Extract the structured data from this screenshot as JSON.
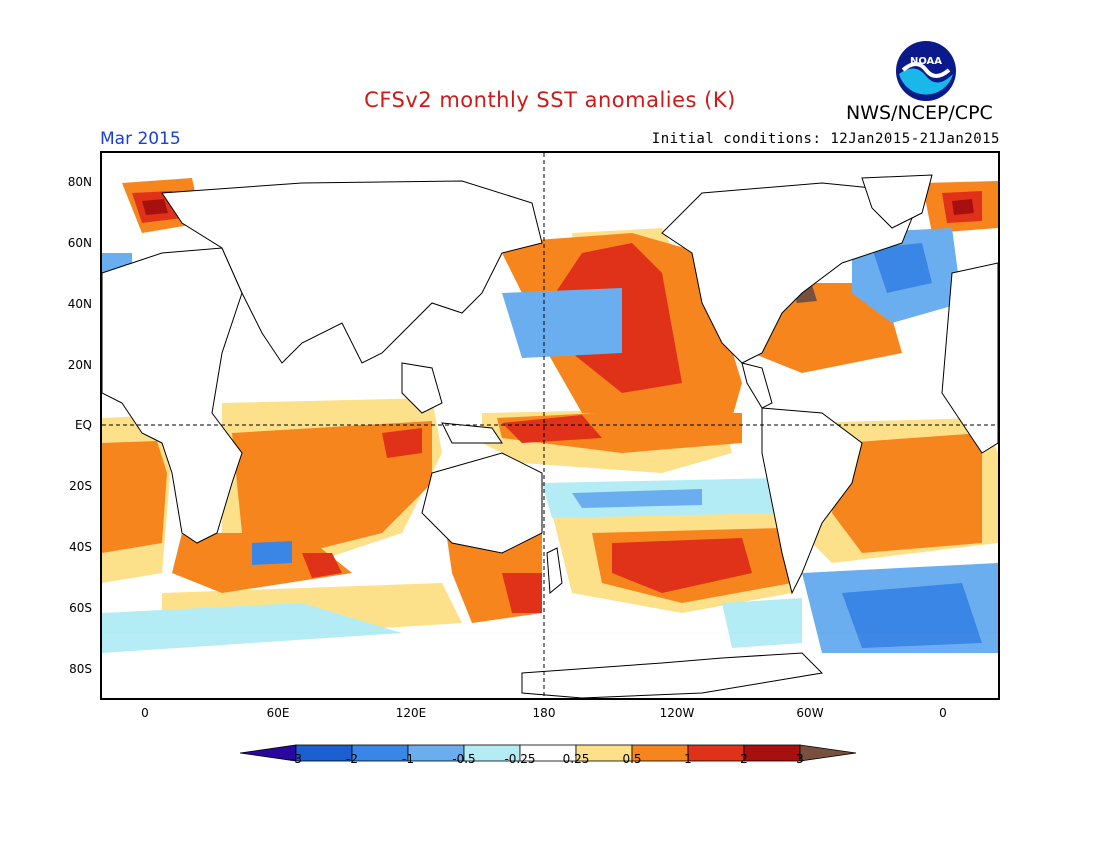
{
  "title": "CFSv2 monthly SST anomalies (K)",
  "org": "NWS/NCEP/CPC",
  "logo_text": "NOAA",
  "valid_month": "Mar 2015",
  "initial_conditions": "Initial conditions: 12Jan2015-21Jan2015",
  "lat_labels": [
    "80N",
    "60N",
    "40N",
    "20N",
    "EQ",
    "20S",
    "40S",
    "60S",
    "80S"
  ],
  "lon_labels": [
    "0",
    "60E",
    "120E",
    "180",
    "120W",
    "60W",
    "0"
  ],
  "colorbar": {
    "labels": [
      "-3",
      "-2",
      "-1",
      "-0.5",
      "-0.25",
      "0.25",
      "0.5",
      "1",
      "2",
      "3"
    ],
    "colors": [
      "#2a08a0",
      "#1b5fd0",
      "#3a86e6",
      "#6aaef0",
      "#b4ecf6",
      "#ffffff",
      "#fde08a",
      "#f7851e",
      "#e03218",
      "#a81010",
      "#785040"
    ]
  },
  "legend_colors": {
    "strong_warm": "#a81010",
    "warm": "#e03218",
    "moderate_warm": "#f7851e",
    "weak_warm": "#fde08a",
    "weak_cool": "#b4ecf6",
    "moderate_cool": "#6aaef0",
    "cool": "#3a86e6"
  }
}
